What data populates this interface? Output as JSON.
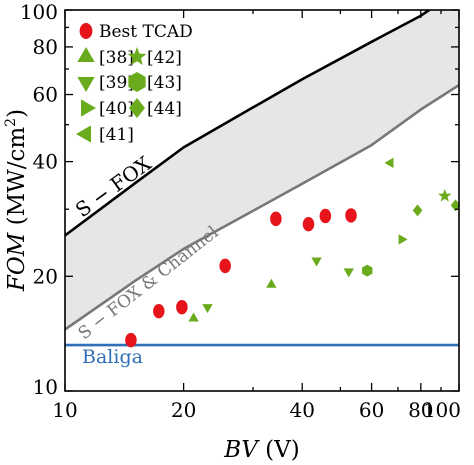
{
  "chart_data": {
    "type": "scatter",
    "x_axis": {
      "label_italic": "BV",
      "label_rest": " (V)",
      "scale": "log",
      "range": [
        10,
        100
      ],
      "tick_labels": [
        "10",
        "20",
        "40",
        "60",
        "80",
        "100"
      ],
      "tick_values": [
        10,
        20,
        40,
        60,
        80,
        100
      ]
    },
    "y_axis": {
      "label_italic": "FOM",
      "label_rest": " (MW/cm",
      "label_sup": "2",
      "label_close": ")",
      "scale": "log",
      "range": [
        10,
        100
      ],
      "tick_labels": [
        "10",
        "20",
        "40",
        "60",
        "80",
        "100"
      ],
      "tick_values": [
        10,
        20,
        40,
        60,
        80,
        100
      ]
    },
    "grid": false,
    "legend_position": "top-left",
    "legend": [
      {
        "label": "Best TCAD",
        "marker": "circle",
        "color": "#e8141b"
      },
      {
        "label": "[38]",
        "marker": "triangle-up",
        "color": "#6aab1d"
      },
      {
        "label": "[39]",
        "marker": "triangle-down",
        "color": "#6aab1d"
      },
      {
        "label": "[40]",
        "marker": "triangle-right",
        "color": "#6aab1d"
      },
      {
        "label": "[41]",
        "marker": "triangle-left",
        "color": "#6aab1d"
      },
      {
        "label": "[42]",
        "marker": "star",
        "color": "#6aab1d"
      },
      {
        "label": "[43]",
        "marker": "hexagon",
        "color": "#6aab1d"
      },
      {
        "label": "[44]",
        "marker": "diamond",
        "color": "#6aab1d"
      }
    ],
    "series": [
      {
        "name": "Best TCAD",
        "marker": "circle",
        "color": "#e8141b",
        "points": [
          [
            14.7,
            13.6
          ],
          [
            17.3,
            16.2
          ],
          [
            19.8,
            16.6
          ],
          [
            25.5,
            21.3
          ],
          [
            34.3,
            28.3
          ],
          [
            41.5,
            27.4
          ],
          [
            45.8,
            28.8
          ],
          [
            53.2,
            28.9
          ]
        ]
      },
      {
        "name": "[38]",
        "marker": "triangle-up",
        "color": "#6aab1d",
        "points": [
          [
            21.2,
            15.5
          ],
          [
            33.4,
            19.0
          ]
        ]
      },
      {
        "name": "[39]",
        "marker": "triangle-down",
        "color": "#6aab1d",
        "points": [
          [
            23.0,
            16.6
          ],
          [
            43.5,
            22.0
          ],
          [
            52.5,
            20.6
          ]
        ]
      },
      {
        "name": "[40]",
        "marker": "triangle-right",
        "color": "#6aab1d",
        "points": [
          [
            71.5,
            25.0
          ]
        ]
      },
      {
        "name": "[41]",
        "marker": "triangle-left",
        "color": "#6aab1d",
        "points": [
          [
            67.0,
            39.7
          ]
        ]
      },
      {
        "name": "[42]",
        "marker": "star",
        "color": "#6aab1d",
        "points": [
          [
            92.0,
            32.5
          ]
        ]
      },
      {
        "name": "[43]",
        "marker": "hexagon",
        "color": "#6aab1d",
        "points": [
          [
            58.5,
            20.7
          ]
        ]
      },
      {
        "name": "[44]",
        "marker": "diamond",
        "color": "#6aab1d",
        "points": [
          [
            78.5,
            29.8
          ],
          [
            98.0,
            30.7
          ]
        ]
      }
    ],
    "lines": [
      {
        "label": "S − FOX",
        "color": "#000000",
        "points": [
          [
            10,
            25.6
          ],
          [
            15,
            35.0
          ],
          [
            20,
            43.6
          ],
          [
            30,
            55.5
          ],
          [
            40,
            65.8
          ],
          [
            60,
            82.5
          ],
          [
            80,
            96.6
          ],
          [
            84,
            100
          ]
        ]
      },
      {
        "label": "S − FOX & Channel",
        "color": "#777777",
        "points": [
          [
            10,
            14.5
          ],
          [
            15,
            19.4
          ],
          [
            20,
            23.6
          ],
          [
            30,
            29.7
          ],
          [
            40,
            35.0
          ],
          [
            60,
            44.2
          ],
          [
            80,
            54.8
          ],
          [
            100,
            63.5
          ]
        ]
      },
      {
        "label": "Baliga",
        "color": "#2f6fb8",
        "points": [
          [
            10,
            13.2
          ],
          [
            100,
            13.2
          ]
        ]
      }
    ],
    "shaded_band": {
      "between": [
        "S − FOX",
        "S − FOX & Channel"
      ],
      "color": "#e6e6e6"
    }
  }
}
